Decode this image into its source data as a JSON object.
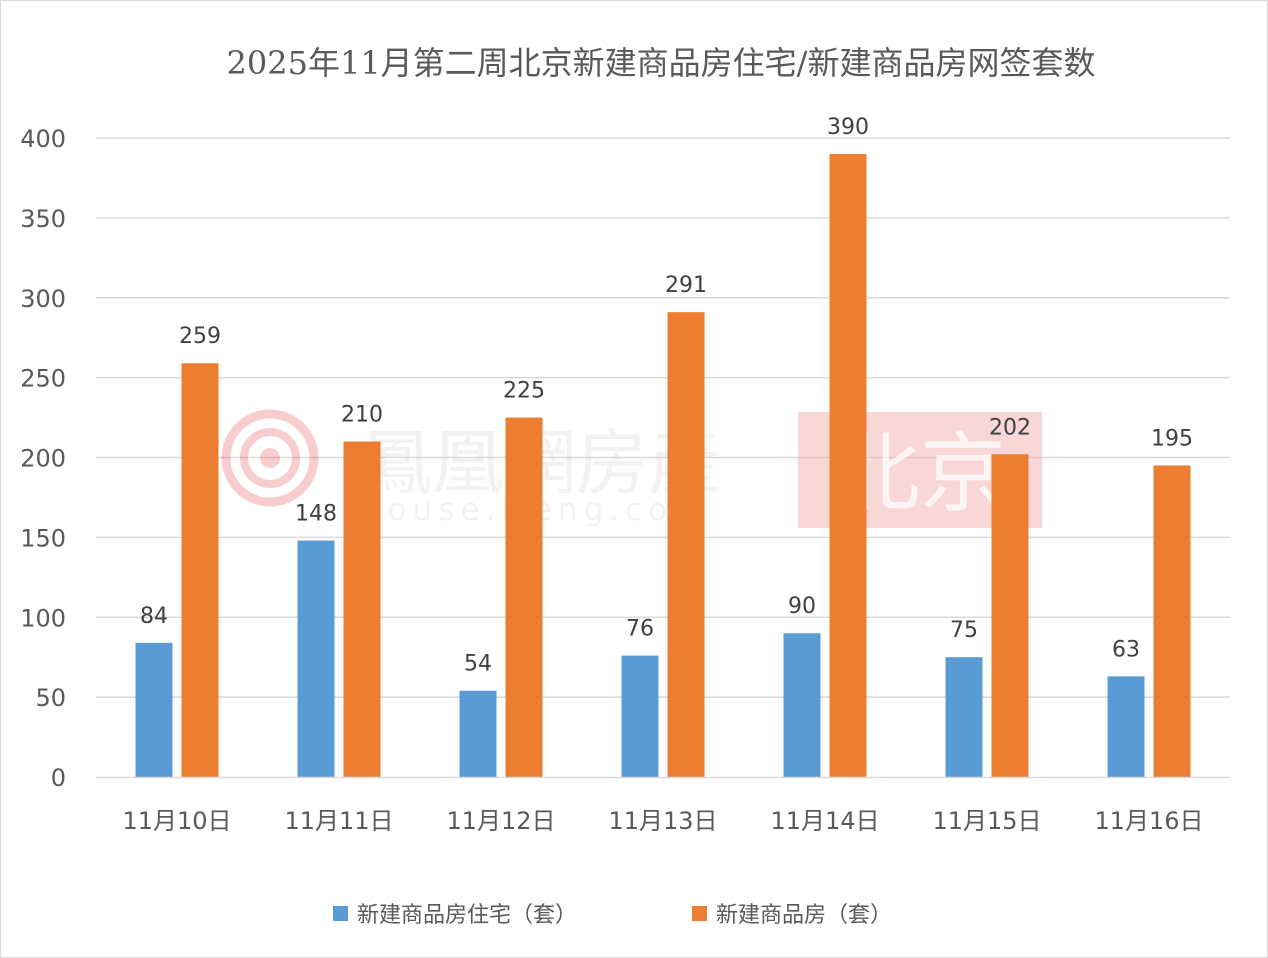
{
  "chart_data": {
    "type": "bar",
    "title": "2025年11月第二周北京新建商品房住宅/新建商品房网签套数",
    "categories": [
      "11月10日",
      "11月11日",
      "11月12日",
      "11月13日",
      "11月14日",
      "11月15日",
      "11月16日"
    ],
    "series": [
      {
        "name": "新建商品房住宅（套）",
        "color": "#5b9bd5",
        "values": [
          84,
          148,
          54,
          76,
          90,
          75,
          63
        ]
      },
      {
        "name": "新建商品房（套）",
        "color": "#ed7d31",
        "values": [
          259,
          210,
          225,
          291,
          390,
          202,
          195
        ]
      }
    ],
    "ylim": [
      0,
      400
    ],
    "yticks": [
      0,
      50,
      100,
      150,
      200,
      250,
      300,
      350,
      400
    ],
    "grid": true,
    "legend_position": "bottom"
  },
  "watermark": {
    "brand": "鳳凰網房產",
    "url": "house.ifeng.com",
    "city": "北京"
  }
}
